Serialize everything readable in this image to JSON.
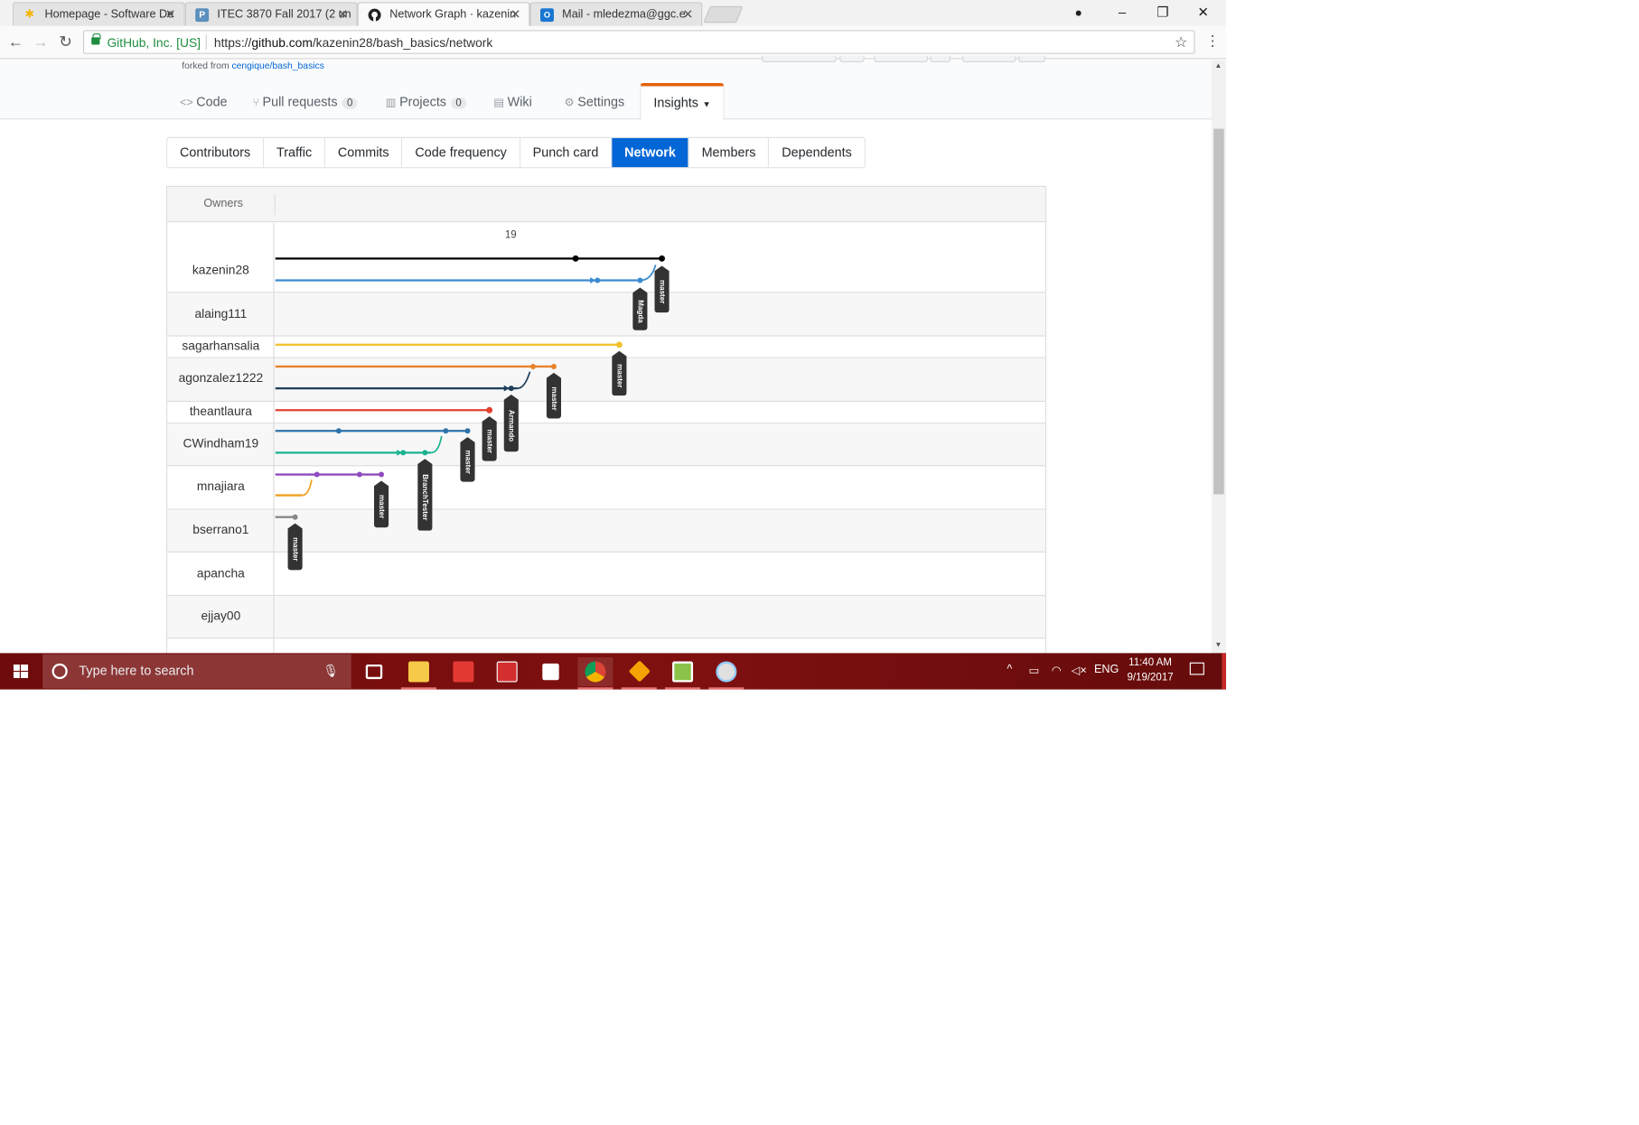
{
  "browser": {
    "tabs": [
      {
        "title": "Homepage - Software De",
        "icon": "asterisk-icon",
        "active": false
      },
      {
        "title": "ITEC 3870 Fall 2017 (2 un",
        "icon": "p-icon",
        "active": false
      },
      {
        "title": "Network Graph · kazenin",
        "icon": "github-icon",
        "active": true
      },
      {
        "title": "Mail - mledezma@ggc.e",
        "icon": "outlook-icon",
        "active": false
      }
    ],
    "security_label": "GitHub, Inc. [US]",
    "url_scheme": "https://",
    "url_host": "github.com",
    "url_path": "/kazenin28/bash_basics/network"
  },
  "repo": {
    "forked_prefix": "forked from ",
    "forked_link": "cengique/bash_basics",
    "nav": [
      {
        "label": "Code",
        "icon": "code-icon",
        "counter": null
      },
      {
        "label": "Pull requests",
        "icon": "pull-request-icon",
        "counter": "0"
      },
      {
        "label": "Projects",
        "icon": "project-icon",
        "counter": "0"
      },
      {
        "label": "Wiki",
        "icon": "book-icon",
        "counter": null
      },
      {
        "label": "Settings",
        "icon": "gear-icon",
        "counter": null
      },
      {
        "label": "Insights",
        "icon": "caret-down-icon",
        "counter": null,
        "selected": true
      }
    ]
  },
  "insights_tabs": [
    "Contributors",
    "Traffic",
    "Commits",
    "Code frequency",
    "Punch card",
    "Network",
    "Members",
    "Dependents"
  ],
  "insights_selected": "Network",
  "network": {
    "owners_header": "Owners",
    "month_label": "19",
    "owners": [
      "kazenin28",
      "alaing111",
      "sagarhansalia",
      "agonzalez1222",
      "theantlaura",
      "CWindham19",
      "mnajiara",
      "bserrano1",
      "apancha",
      "ejjay00"
    ],
    "branch_labels": [
      "master",
      "Magda",
      "master",
      "master",
      "Armando",
      "master",
      "master",
      "BranchTester",
      "master",
      "master"
    ],
    "colors": {
      "black": "#000000",
      "blue": "#3a8bd0",
      "yellow": "#f2c230",
      "orange": "#e8822a",
      "navy": "#1f3f5a",
      "red": "#e2412f",
      "steel": "#2f73a8",
      "teal": "#1bb291",
      "purple": "#8f4bbf",
      "amber": "#f0a020",
      "gray": "#888888",
      "label_bg": "#333333"
    }
  },
  "taskbar": {
    "search_placeholder": "Type here to search",
    "language": "ENG",
    "time": "11:40 AM",
    "date": "9/19/2017"
  }
}
